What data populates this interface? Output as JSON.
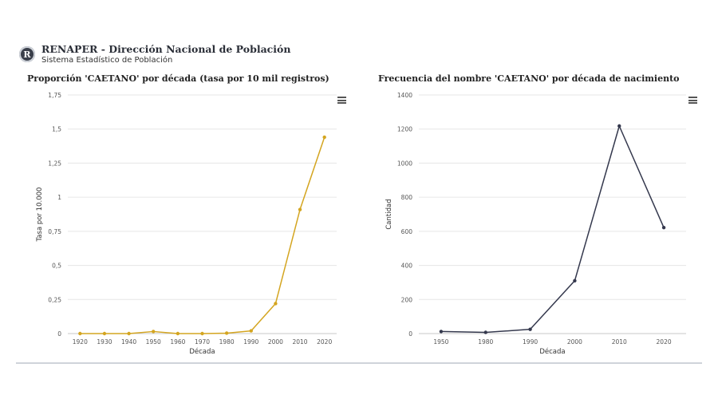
{
  "header": {
    "logo_letter": "R",
    "title": "RENAPER - Dirección Nacional de Población",
    "subtitle": "Sistema Estadístico de Población"
  },
  "colors": {
    "series_left": "#d4a520",
    "series_right": "#34384d",
    "grid": "#e6e6e6"
  },
  "chart_data": [
    {
      "type": "line",
      "title": "Proporción 'CAETANO' por década (tasa por 10 mil registros)",
      "xlabel": "Década",
      "ylabel": "Tasa por 10.000",
      "categories": [
        "1920",
        "1930",
        "1940",
        "1950",
        "1960",
        "1970",
        "1980",
        "1990",
        "2000",
        "2010",
        "2020"
      ],
      "values": [
        0,
        0,
        0,
        0.015,
        0,
        0,
        0.003,
        0.02,
        0.22,
        0.91,
        1.44
      ],
      "ylim": [
        0,
        1.75
      ],
      "yticks": [
        0,
        0.25,
        0.5,
        0.75,
        1,
        1.25,
        1.5,
        1.75
      ],
      "ytick_labels": [
        "0",
        "0,25",
        "0,5",
        "0,75",
        "1",
        "1,25",
        "1,5",
        "1,75"
      ],
      "grid": true
    },
    {
      "type": "line",
      "title": "Frecuencia del nombre 'CAETANO' por década de nacimiento",
      "xlabel": "Década",
      "ylabel": "Cantidad",
      "categories": [
        "1950",
        "1980",
        "1990",
        "2000",
        "2010",
        "2020"
      ],
      "values": [
        12,
        7,
        25,
        310,
        1218,
        622
      ],
      "ylim": [
        0,
        1400
      ],
      "yticks": [
        0,
        200,
        400,
        600,
        800,
        1000,
        1200,
        1400
      ],
      "ytick_labels": [
        "0",
        "200",
        "400",
        "600",
        "800",
        "1000",
        "1200",
        "1400"
      ],
      "grid": true
    }
  ]
}
